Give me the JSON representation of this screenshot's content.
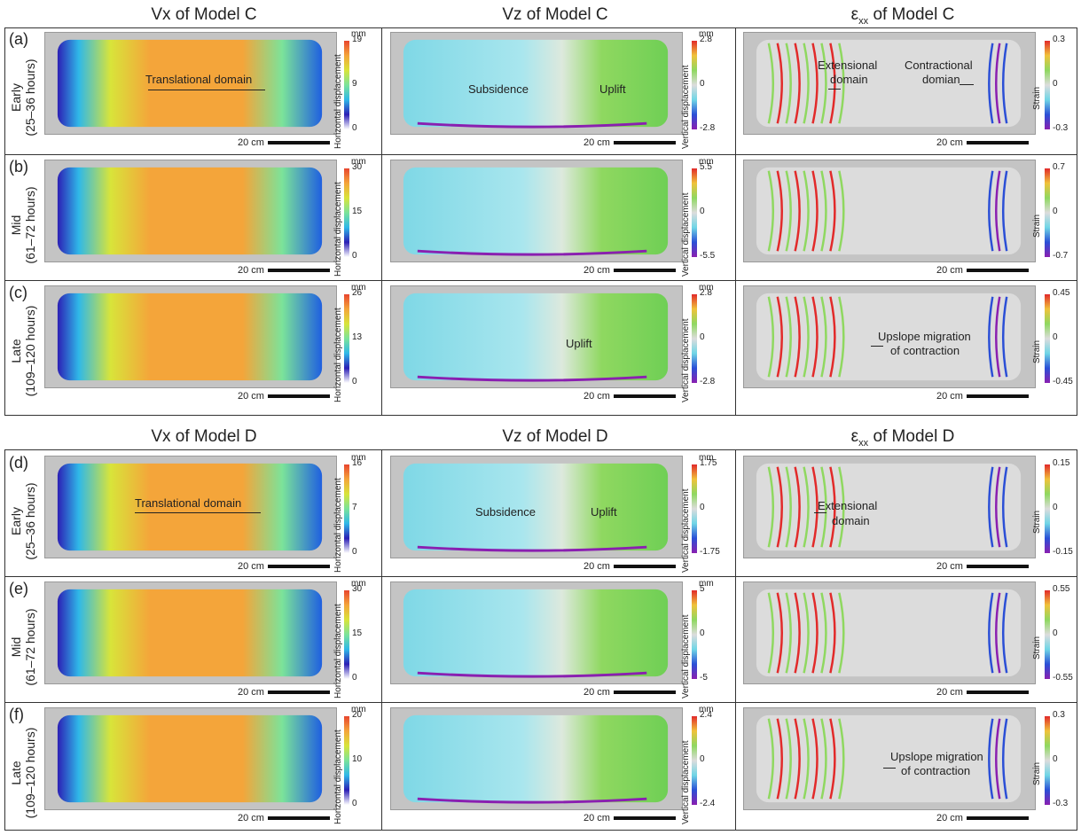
{
  "titles": {
    "vx_c": "Vx of Model C",
    "vz_c": "Vz of Model C",
    "exx_c_main": "ε",
    "exx_c_sub": "xx",
    "exx_c_rest": "of Model C",
    "vx_d": "Vx of Model D",
    "vz_d": "Vz of Model D",
    "exx_d_main": "ε",
    "exx_d_sub": "xx",
    "exx_d_rest": "of Model D"
  },
  "rows": [
    {
      "letter": "(a)",
      "stage": "Early",
      "time": "(25–36 hours)"
    },
    {
      "letter": "(b)",
      "stage": "Mid",
      "time": "(61–72 hours)"
    },
    {
      "letter": "(c)",
      "stage": "Late",
      "time": "(109–120 hours)"
    },
    {
      "letter": "(d)",
      "stage": "Early",
      "time": "(25–36 hours)"
    },
    {
      "letter": "(e)",
      "stage": "Mid",
      "time": "(61–72 hours)"
    },
    {
      "letter": "(f)",
      "stage": "Late",
      "time": "(109–120 hours)"
    }
  ],
  "scale_label": "20 cm",
  "colorbar_titles": {
    "h": "Horizontal displacement",
    "v": "Vertical displacement",
    "s": "Strain"
  },
  "unit": "mm",
  "colorbars": {
    "h": [
      [
        "19",
        "9",
        "0"
      ],
      [
        "30",
        "15",
        "0"
      ],
      [
        "26",
        "13",
        "0"
      ],
      [
        "16",
        "7",
        "0"
      ],
      [
        "30",
        "15",
        "0"
      ],
      [
        "20",
        "10",
        "0"
      ]
    ],
    "v": [
      [
        "2.8",
        "0",
        "-2.8"
      ],
      [
        "5.5",
        "0",
        "-5.5"
      ],
      [
        "2.8",
        "0",
        "-2.8"
      ],
      [
        "1.75",
        "0",
        "-1.75"
      ],
      [
        "5",
        "0",
        "-5"
      ],
      [
        "2.4",
        "0",
        "-2.4"
      ]
    ],
    "s": [
      [
        "0.3",
        "0",
        "-0.3"
      ],
      [
        "0.7",
        "0",
        "-0.7"
      ],
      [
        "0.45",
        "0",
        "-0.45"
      ],
      [
        "0.15",
        "0",
        "-0.15"
      ],
      [
        "0.55",
        "0",
        "-0.55"
      ],
      [
        "0.3",
        "0",
        "-0.3"
      ]
    ]
  },
  "annotations": {
    "a_vx": "Translational domain",
    "a_vz_sub": "Subsidence",
    "a_vz_up": "Uplift",
    "a_s_ext1": "Extensional",
    "a_s_ext2": "domain",
    "a_s_con1": "Contractional",
    "a_s_con2": "domian",
    "c_vz_up": "Uplift",
    "c_s_1": "Upslope migration",
    "c_s_2": "of contraction",
    "d_vx": "Translational domain",
    "d_vz_sub": "Subsidence",
    "d_vz_up": "Uplift",
    "d_s_ext1": "Extensional",
    "d_s_ext2": "domain",
    "f_s_1": "Upslope migration",
    "f_s_2": "of contraction"
  },
  "colors": {
    "jet": [
      "#2c1fb5",
      "#1f5fe0",
      "#2fb8e8",
      "#7be39a",
      "#d8e43a",
      "#f4a53a",
      "#e8452e"
    ],
    "diverge": [
      "#8a1fb0",
      "#2b4fd6",
      "#6fd6e6",
      "#dcdcdc",
      "#8fd860",
      "#f0c23a",
      "#e22a2a"
    ]
  }
}
